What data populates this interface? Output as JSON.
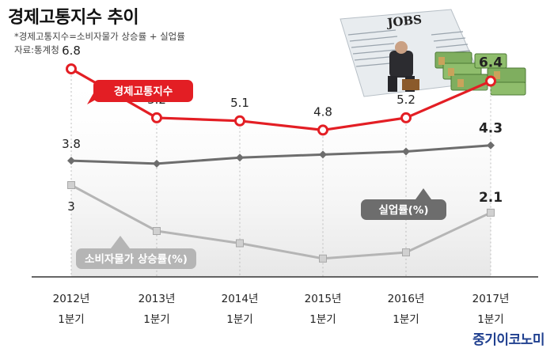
{
  "title": "경제고통지수 추이",
  "notes": {
    "formula": "*경제고통지수=소비자물가 상승률 + 실업률",
    "source": "자료:통계청"
  },
  "source_mark": "중기이코노미",
  "photo": {
    "newspaper_text": "JOBS"
  },
  "colors": {
    "misery": "#e31e24",
    "unemployment": "#6d6d6d",
    "inflation": "#b5b5b5"
  },
  "chart_data": {
    "type": "line",
    "categories": [
      "2012년 1분기",
      "2013년 1분기",
      "2014년 1분기",
      "2015년 1분기",
      "2016년 1분기",
      "2017년 1분기"
    ],
    "category_lines": [
      [
        "2012년",
        "1분기"
      ],
      [
        "2013년",
        "1분기"
      ],
      [
        "2014년",
        "1분기"
      ],
      [
        "2015년",
        "1분기"
      ],
      [
        "2016년",
        "1분기"
      ],
      [
        "2017년",
        "1분기"
      ]
    ],
    "series": [
      {
        "name": "경제고통지수",
        "values": [
          6.8,
          5.2,
          5.1,
          4.8,
          5.2,
          6.4
        ],
        "labels": [
          "6.8",
          "5.2",
          "5.1",
          "4.8",
          "5.2",
          "6.4"
        ],
        "color": "#e31e24"
      },
      {
        "name": "실업률(%)",
        "values": [
          3.8,
          3.7,
          3.9,
          4.0,
          4.1,
          4.3
        ],
        "labels": [
          "3.8",
          "",
          "",
          "",
          "",
          "4.3"
        ],
        "color": "#6d6d6d"
      },
      {
        "name": "소비자물가 상승률(%)",
        "values": [
          3.0,
          1.5,
          1.1,
          0.6,
          0.8,
          2.1
        ],
        "labels": [
          "3",
          "",
          "",
          "",
          "",
          "2.1"
        ],
        "color": "#b5b5b5"
      }
    ],
    "ylim": [
      0,
      7.5
    ],
    "grid": false
  }
}
